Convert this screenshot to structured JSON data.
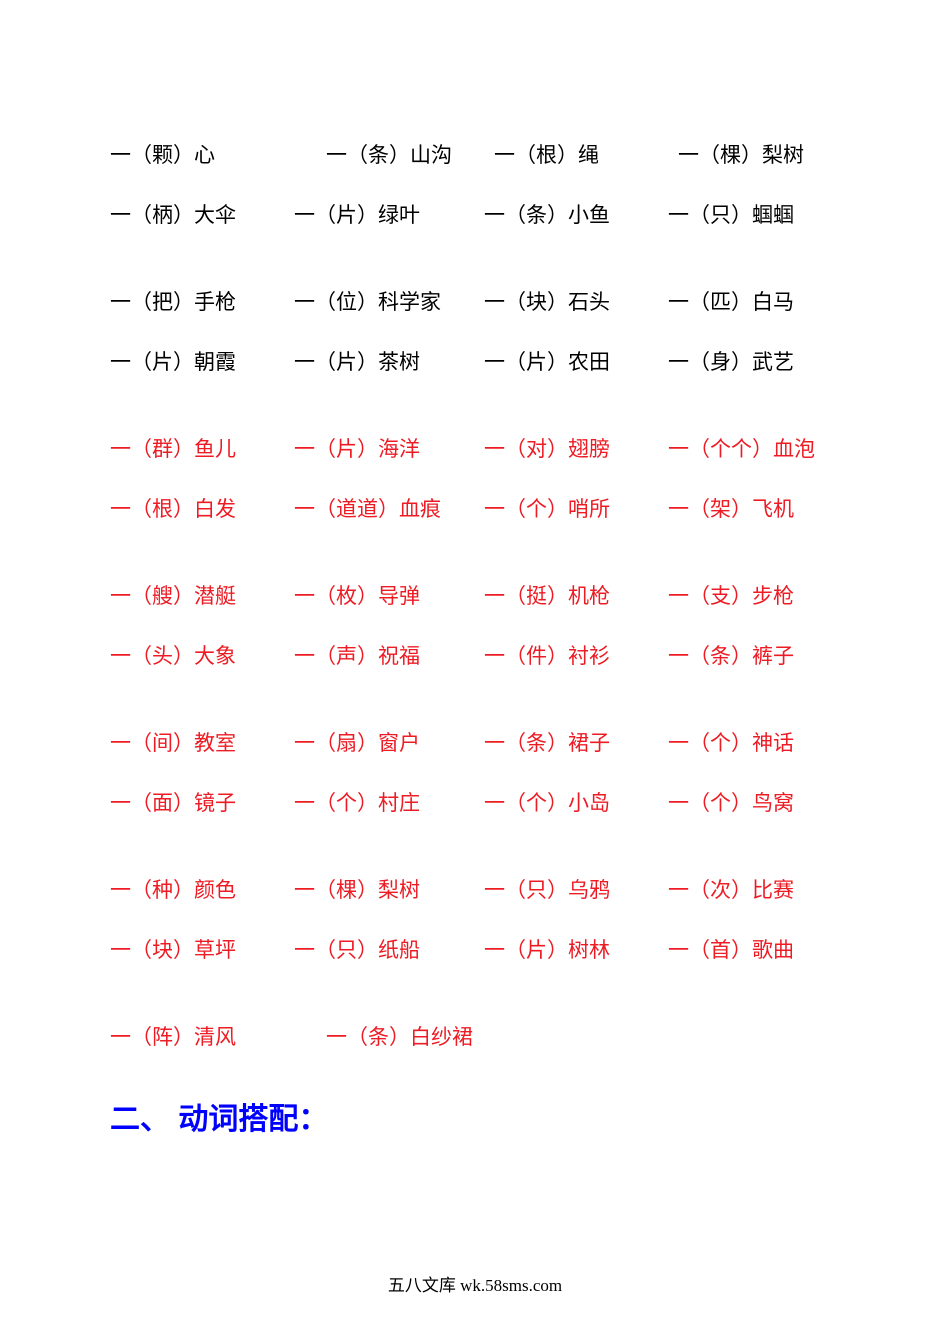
{
  "colors": {
    "black": "#000000",
    "red": "#ed1c24",
    "blue": "#0000ff",
    "background": "#ffffff"
  },
  "rows": [
    {
      "gap_after": false,
      "items": [
        {
          "pre": "一（",
          "mw": "颗",
          "post": "）心",
          "red": false,
          "wide": true
        },
        {
          "pre": "一（",
          "mw": "条",
          "post": "）山沟",
          "red": false,
          "wide": true
        },
        {
          "pre": "一（",
          "mw": "根",
          "post": "）绳",
          "red": false
        },
        {
          "pre": "一（",
          "mw": "棵",
          "post": "）梨树",
          "red": false
        }
      ]
    },
    {
      "gap_after": true,
      "items": [
        {
          "pre": "一（",
          "mw": "柄",
          "post": "）大伞",
          "red": false
        },
        {
          "pre": "一（",
          "mw": "片",
          "post": "）绿叶",
          "red": false
        },
        {
          "pre": "一（",
          "mw": "条",
          "post": "）小鱼",
          "red": false
        },
        {
          "pre": "一（",
          "mw": "只",
          "post": "）蝈蝈",
          "red": false
        }
      ]
    },
    {
      "gap_after": false,
      "items": [
        {
          "pre": "一（",
          "mw": "把",
          "post": "）手枪",
          "red": false
        },
        {
          "pre": "一（",
          "mw": "位",
          "post": "）科学家",
          "red": false
        },
        {
          "pre": "一（",
          "mw": "块",
          "post": "）石头",
          "red": false
        },
        {
          "pre": "一（",
          "mw": "匹",
          "post": "）白马",
          "red": false
        }
      ]
    },
    {
      "gap_after": true,
      "items": [
        {
          "pre": "一（",
          "mw": "片",
          "post": "）朝霞",
          "red": false
        },
        {
          "pre": "一（",
          "mw": "片",
          "post": "）茶树",
          "red": false
        },
        {
          "pre": "一（",
          "mw": "片",
          "post": "）农田",
          "red": false
        },
        {
          "pre": "一（",
          "mw": "身",
          "post": "）武艺",
          "red": false
        }
      ]
    },
    {
      "gap_after": false,
      "items": [
        {
          "pre": "一（",
          "mw": "群",
          "post": "）鱼儿",
          "red": true
        },
        {
          "pre": "一（",
          "mw": "片",
          "post": "）海洋",
          "red": true
        },
        {
          "pre": "一（",
          "mw": "对",
          "post": "）翅膀",
          "red": true
        },
        {
          "pre": "一（",
          "mw": "个个",
          "post": "）血泡",
          "red": true
        }
      ]
    },
    {
      "gap_after": true,
      "items": [
        {
          "pre": "一（",
          "mw": "根",
          "post": "）白发",
          "red": true
        },
        {
          "pre": "一（",
          "mw": "道道",
          "post": "）血痕",
          "red": true,
          "nosp": true
        },
        {
          "pre": "一（",
          "mw": "个",
          "post": "）哨所",
          "red": true
        },
        {
          "pre": "一（",
          "mw": "架",
          "post": "）飞机",
          "red": true
        }
      ]
    },
    {
      "gap_after": false,
      "items": [
        {
          "pre": "一（",
          "mw": "艘",
          "post": "）潜艇",
          "red": true
        },
        {
          "pre": "一（",
          "mw": "枚",
          "post": "）导弹",
          "red": true
        },
        {
          "pre": "一（",
          "mw": "挺",
          "post": "）机枪",
          "red": true
        },
        {
          "pre": "一（",
          "mw": "支",
          "post": "）步枪",
          "red": true
        }
      ]
    },
    {
      "gap_after": true,
      "items": [
        {
          "pre": "一（",
          "mw": "头",
          "post": "）大象",
          "red": true
        },
        {
          "pre": "一（",
          "mw": "声",
          "post": "）祝福",
          "red": true
        },
        {
          "pre": "一（",
          "mw": "件",
          "post": "）衬衫",
          "red": true
        },
        {
          "pre": "一（",
          "mw": "条",
          "post": "）裤子",
          "red": true
        }
      ]
    },
    {
      "gap_after": false,
      "items": [
        {
          "pre": "一（",
          "mw": "间",
          "post": "）教室",
          "red": true
        },
        {
          "pre": "一（",
          "mw": "扇",
          "post": "）窗户",
          "red": true
        },
        {
          "pre": "一（",
          "mw": "条",
          "post": "）裙子",
          "red": true
        },
        {
          "pre": "一（",
          "mw": "个",
          "post": "）神话",
          "red": true
        }
      ]
    },
    {
      "gap_after": true,
      "items": [
        {
          "pre": "一（",
          "mw": "面",
          "post": "）镜子",
          "red": true
        },
        {
          "pre": "一（",
          "mw": "个",
          "post": "）村庄",
          "red": true
        },
        {
          "pre": "一（",
          "mw": "个",
          "post": "）小岛",
          "red": true
        },
        {
          "pre": "一（",
          "mw": "个",
          "post": "）鸟窝",
          "red": true
        }
      ]
    },
    {
      "gap_after": false,
      "items": [
        {
          "pre": "一（",
          "mw": "种",
          "post": "）颜色",
          "red": true
        },
        {
          "pre": "一（",
          "mw": "棵",
          "post": "）梨树",
          "red": true
        },
        {
          "pre": "一（",
          "mw": "只",
          "post": "）乌鸦",
          "red": true
        },
        {
          "pre": "一（",
          "mw": "次",
          "post": "）比赛",
          "red": true
        }
      ]
    },
    {
      "gap_after": true,
      "items": [
        {
          "pre": "一（",
          "mw": "块",
          "post": "）草坪",
          "red": true
        },
        {
          "pre": "一（",
          "mw": "只",
          "post": "）纸船",
          "red": true
        },
        {
          "pre": "一（",
          "mw": "片",
          "post": "）树林",
          "red": true,
          "nosp": true
        },
        {
          "pre": "一（",
          "mw": "首",
          "post": "）歌曲",
          "red": true
        }
      ]
    },
    {
      "gap_after": false,
      "items": [
        {
          "pre": "一（",
          "mw": "阵",
          "post": "）清风",
          "red": true,
          "wide": true
        },
        {
          "pre": "一（",
          "mw": "条",
          "post": "）白纱裙",
          "red": true
        }
      ]
    }
  ],
  "heading": "二、 动词搭配：",
  "footer": "五八文库 wk.58sms.com"
}
